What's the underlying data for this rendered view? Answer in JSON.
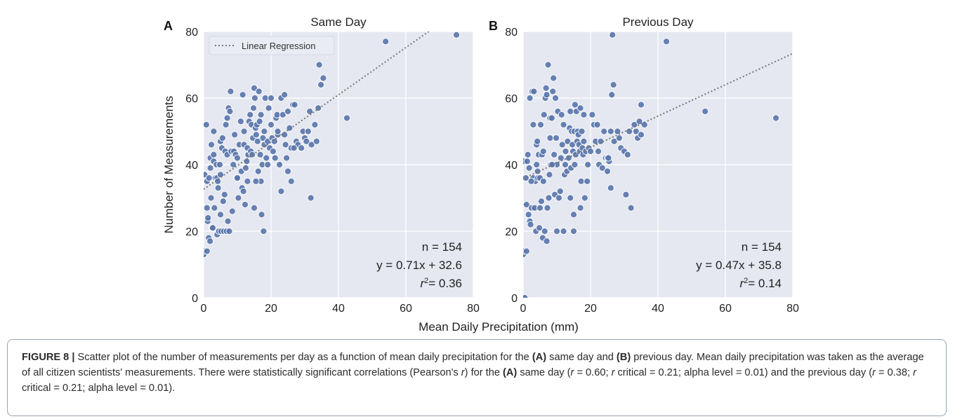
{
  "chart_data": [
    {
      "panel": "A",
      "type": "scatter",
      "title": "Same Day",
      "xlabel": "Mean Daily Precipitation (mm)",
      "ylabel": "Number of Measurements",
      "xlim": [
        0,
        80
      ],
      "ylim": [
        0,
        80
      ],
      "xticks": [
        0,
        20,
        40,
        60,
        80
      ],
      "yticks": [
        0,
        20,
        40,
        60,
        80
      ],
      "grid": true,
      "legend": {
        "position": "top-left",
        "entries": [
          "Linear Regression"
        ]
      },
      "regression": {
        "slope": 0.71,
        "intercept": 32.6,
        "style": "dotted",
        "color": "#777777"
      },
      "stats": [
        "n = 154",
        "y = 0.71x + 32.6",
        "= 0.36"
      ],
      "stats_r2_prefix": "r",
      "stats_r2_sup": "2",
      "points": [
        [
          0,
          13
        ],
        [
          0,
          14
        ],
        [
          0.3,
          37
        ],
        [
          0.8,
          52
        ],
        [
          1,
          14
        ],
        [
          1,
          27
        ],
        [
          1,
          35
        ],
        [
          1.2,
          23
        ],
        [
          1.3,
          24
        ],
        [
          1.5,
          18
        ],
        [
          1.6,
          36
        ],
        [
          1.9,
          17
        ],
        [
          2,
          39
        ],
        [
          2,
          42
        ],
        [
          2.2,
          30
        ],
        [
          2.5,
          21
        ],
        [
          2.7,
          21
        ],
        [
          3,
          41
        ],
        [
          3,
          43
        ],
        [
          3,
          50
        ],
        [
          3.2,
          27
        ],
        [
          3.5,
          36
        ],
        [
          3.8,
          40
        ],
        [
          4,
          19
        ],
        [
          4,
          36
        ],
        [
          4.3,
          33
        ],
        [
          4.5,
          20
        ],
        [
          4.8,
          40
        ],
        [
          5,
          25
        ],
        [
          5,
          37
        ],
        [
          5,
          47
        ],
        [
          5.2,
          20
        ],
        [
          5.4,
          45
        ],
        [
          5.6,
          48
        ],
        [
          5.8,
          29
        ],
        [
          6,
          20
        ],
        [
          6.2,
          31
        ],
        [
          6.4,
          44
        ],
        [
          6.6,
          52
        ],
        [
          6.8,
          20
        ],
        [
          7,
          43
        ],
        [
          7,
          54
        ],
        [
          7.2,
          23
        ],
        [
          7.4,
          57
        ],
        [
          7.6,
          20
        ],
        [
          7.8,
          56
        ],
        [
          8,
          62
        ],
        [
          8.2,
          44
        ],
        [
          8.5,
          26
        ],
        [
          8.8,
          40
        ],
        [
          9,
          44
        ],
        [
          9.2,
          49
        ],
        [
          9.5,
          43
        ],
        [
          9.8,
          36
        ],
        [
          10,
          42
        ],
        [
          10.3,
          30
        ],
        [
          10.6,
          46
        ],
        [
          11,
          53
        ],
        [
          11.2,
          38
        ],
        [
          11.4,
          33
        ],
        [
          11.6,
          61
        ],
        [
          11.8,
          32
        ],
        [
          12,
          46
        ],
        [
          12,
          50
        ],
        [
          12.3,
          28
        ],
        [
          12.5,
          39
        ],
        [
          12.8,
          41
        ],
        [
          13,
          45
        ],
        [
          13.2,
          43
        ],
        [
          13.5,
          53
        ],
        [
          13.8,
          55
        ],
        [
          14,
          44
        ],
        [
          14.2,
          52
        ],
        [
          14.4,
          43
        ],
        [
          14.6,
          48
        ],
        [
          14.8,
          57
        ],
        [
          15,
          27
        ],
        [
          15,
          63
        ],
        [
          15.2,
          60
        ],
        [
          15.4,
          51
        ],
        [
          15.6,
          49
        ],
        [
          15.8,
          52
        ],
        [
          16,
          47
        ],
        [
          16.2,
          38
        ],
        [
          16.4,
          62
        ],
        [
          16.6,
          53
        ],
        [
          16.8,
          43
        ],
        [
          17,
          35
        ],
        [
          17,
          55
        ],
        [
          17.2,
          25
        ],
        [
          17.4,
          40
        ],
        [
          17.6,
          48
        ],
        [
          17.8,
          20
        ],
        [
          18,
          50
        ],
        [
          18,
          46
        ],
        [
          18.3,
          60
        ],
        [
          18.6,
          42
        ],
        [
          19,
          47
        ],
        [
          19.3,
          57
        ],
        [
          19.6,
          45
        ],
        [
          20,
          52
        ],
        [
          20,
          60
        ],
        [
          20.3,
          48
        ],
        [
          20.6,
          44
        ],
        [
          21,
          47
        ],
        [
          21.2,
          42
        ],
        [
          21.5,
          54
        ],
        [
          21.8,
          55
        ],
        [
          22,
          49
        ],
        [
          22.5,
          40
        ],
        [
          23,
          60
        ],
        [
          23,
          32
        ],
        [
          23.5,
          55
        ],
        [
          24,
          61
        ],
        [
          24,
          49
        ],
        [
          24.3,
          46
        ],
        [
          24.6,
          42
        ],
        [
          25,
          38
        ],
        [
          25,
          56
        ],
        [
          25.5,
          51
        ],
        [
          26,
          35
        ],
        [
          26,
          45
        ],
        [
          26.5,
          58
        ],
        [
          27,
          58
        ],
        [
          27.5,
          47
        ],
        [
          28,
          46
        ],
        [
          29,
          45
        ],
        [
          29.5,
          50
        ],
        [
          30,
          48
        ],
        [
          30.5,
          47
        ],
        [
          31,
          50
        ],
        [
          31.5,
          56
        ],
        [
          31.8,
          30
        ],
        [
          32,
          46
        ],
        [
          33,
          52
        ],
        [
          33.5,
          47
        ],
        [
          34,
          57
        ],
        [
          34.3,
          70
        ],
        [
          34.8,
          64
        ],
        [
          35.5,
          66
        ],
        [
          42.5,
          54
        ],
        [
          54,
          77
        ],
        [
          75,
          79
        ],
        [
          2.3,
          46
        ],
        [
          4.2,
          35
        ],
        [
          10,
          36
        ],
        [
          13,
          35
        ],
        [
          15.5,
          35
        ],
        [
          19,
          40
        ],
        [
          22,
          50
        ],
        [
          26.8,
          45
        ]
      ]
    },
    {
      "panel": "B",
      "type": "scatter",
      "title": "Previous Day",
      "xlabel": "Mean Daily Precipitation (mm)",
      "ylabel": "",
      "xlim": [
        0,
        80
      ],
      "ylim": [
        0,
        80
      ],
      "xticks": [
        0,
        20,
        40,
        60,
        80
      ],
      "yticks": [
        0,
        20,
        40,
        60,
        80
      ],
      "grid": true,
      "regression": {
        "slope": 0.47,
        "intercept": 35.8,
        "style": "dotted",
        "color": "#777777"
      },
      "stats": [
        "n = 154",
        "y = 0.47x + 35.8",
        "= 0.14"
      ],
      "stats_r2_prefix": "r",
      "stats_r2_sup": "2",
      "points": [
        [
          0,
          0
        ],
        [
          0.5,
          0
        ],
        [
          0,
          13
        ],
        [
          0,
          14
        ],
        [
          0.3,
          41
        ],
        [
          0.8,
          36
        ],
        [
          1,
          14
        ],
        [
          1,
          28
        ],
        [
          1.2,
          41
        ],
        [
          1.4,
          43
        ],
        [
          1.6,
          25
        ],
        [
          1.8,
          39
        ],
        [
          2,
          23
        ],
        [
          2,
          60
        ],
        [
          2.2,
          22
        ],
        [
          2.5,
          27
        ],
        [
          2.7,
          62
        ],
        [
          3,
          36
        ],
        [
          3,
          52
        ],
        [
          3.2,
          62
        ],
        [
          3.4,
          27
        ],
        [
          3.6,
          35
        ],
        [
          3.8,
          20
        ],
        [
          4,
          40
        ],
        [
          4,
          46
        ],
        [
          4.2,
          47
        ],
        [
          4.4,
          36
        ],
        [
          4.6,
          43
        ],
        [
          4.8,
          21
        ],
        [
          5,
          27
        ],
        [
          5,
          36
        ],
        [
          5.2,
          52
        ],
        [
          5.4,
          29
        ],
        [
          5.6,
          43
        ],
        [
          5.8,
          18
        ],
        [
          6,
          35
        ],
        [
          6,
          44
        ],
        [
          6.2,
          55
        ],
        [
          6.4,
          20
        ],
        [
          6.6,
          60
        ],
        [
          6.8,
          63
        ],
        [
          7,
          17
        ],
        [
          7,
          61
        ],
        [
          7.2,
          27
        ],
        [
          7.4,
          70
        ],
        [
          7.6,
          30
        ],
        [
          7.8,
          37
        ],
        [
          8,
          54
        ],
        [
          8,
          48
        ],
        [
          8.2,
          40
        ],
        [
          8.5,
          54
        ],
        [
          8.8,
          62
        ],
        [
          9,
          66
        ],
        [
          9.2,
          43
        ],
        [
          9.4,
          31
        ],
        [
          9.6,
          60
        ],
        [
          9.8,
          48
        ],
        [
          10,
          20
        ],
        [
          10,
          40
        ],
        [
          10.3,
          56
        ],
        [
          10.6,
          30
        ],
        [
          11,
          32
        ],
        [
          11.2,
          42
        ],
        [
          11.4,
          55
        ],
        [
          11.6,
          46
        ],
        [
          12,
          20
        ],
        [
          12,
          52
        ],
        [
          12.3,
          37
        ],
        [
          12.6,
          44
        ],
        [
          13,
          38
        ],
        [
          13.2,
          47
        ],
        [
          13.5,
          42
        ],
        [
          13.8,
          51
        ],
        [
          14,
          30
        ],
        [
          14,
          56
        ],
        [
          14.2,
          39
        ],
        [
          14.4,
          50
        ],
        [
          14.6,
          46
        ],
        [
          14.8,
          44
        ],
        [
          15,
          20
        ],
        [
          15,
          25
        ],
        [
          15.2,
          50
        ],
        [
          15.4,
          58
        ],
        [
          15.6,
          43
        ],
        [
          15.8,
          56
        ],
        [
          16,
          47
        ],
        [
          16.2,
          50
        ],
        [
          16.4,
          49
        ],
        [
          16.6,
          46
        ],
        [
          16.8,
          44
        ],
        [
          17,
          27
        ],
        [
          17,
          57
        ],
        [
          17.2,
          35
        ],
        [
          17.4,
          50
        ],
        [
          17.6,
          45
        ],
        [
          17.8,
          43
        ],
        [
          18,
          55
        ],
        [
          18,
          47
        ],
        [
          18.3,
          30
        ],
        [
          18.6,
          44
        ],
        [
          19,
          35
        ],
        [
          19.5,
          45
        ],
        [
          20,
          44
        ],
        [
          20.5,
          55
        ],
        [
          21,
          52
        ],
        [
          21.5,
          47
        ],
        [
          22,
          52
        ],
        [
          22.5,
          40
        ],
        [
          23,
          47
        ],
        [
          23.5,
          39
        ],
        [
          24,
          50
        ],
        [
          24.5,
          42
        ],
        [
          25,
          38
        ],
        [
          25,
          42
        ],
        [
          25.5,
          41
        ],
        [
          26,
          33
        ],
        [
          26,
          50
        ],
        [
          26.3,
          61
        ],
        [
          26.5,
          79
        ],
        [
          26.8,
          64
        ],
        [
          27,
          47
        ],
        [
          28,
          50
        ],
        [
          28.5,
          48
        ],
        [
          29,
          45
        ],
        [
          30,
          44
        ],
        [
          30.5,
          31
        ],
        [
          31,
          43
        ],
        [
          31.5,
          50
        ],
        [
          32,
          27
        ],
        [
          33,
          52
        ],
        [
          33.5,
          50
        ],
        [
          34,
          48
        ],
        [
          34.5,
          53
        ],
        [
          35,
          49
        ],
        [
          35,
          58
        ],
        [
          36,
          52
        ],
        [
          42.5,
          77
        ],
        [
          54,
          56
        ],
        [
          75,
          54
        ],
        [
          2.4,
          35
        ],
        [
          4.3,
          38
        ],
        [
          8.6,
          40
        ],
        [
          12.5,
          40
        ],
        [
          15.3,
          40
        ],
        [
          19.2,
          40
        ],
        [
          22.3,
          44
        ],
        [
          25.3,
          42
        ]
      ]
    }
  ],
  "shared_xlabel": "Mean Daily Precipitation (mm)",
  "panel_letters": [
    "A",
    "B"
  ],
  "colors": {
    "plot_background": "#e5e8f0",
    "grid": "#ffffff",
    "point_fill": "#5874ab",
    "point_edge": "#ffffff",
    "regression_line": "#777777",
    "caption_border": "#9aa6ad"
  },
  "caption": {
    "label": "FIGURE 8 |",
    "t1": " Scatter plot of the number of measurements per day as a function of mean daily precipitation for the ",
    "a1": "(A)",
    "t2": " same day and ",
    "b1": "(B)",
    "t3": " previous day. Mean daily precipitation was taken as the average of all citizen scientists' measurements. There were statistically significant correlations (Pearson's ",
    "r1": "r",
    "t4": ") for the ",
    "a2": "(A)",
    "t5": " same day (",
    "r2": "r",
    "t6": " = 0.60; ",
    "r3": "r",
    "t7": " critical = 0.21; alpha level = 0.01) and the previous day (",
    "r4": "r",
    "t8": " = 0.38; ",
    "r5": "r",
    "t9": " critical = 0.21; alpha level = 0.01)."
  }
}
